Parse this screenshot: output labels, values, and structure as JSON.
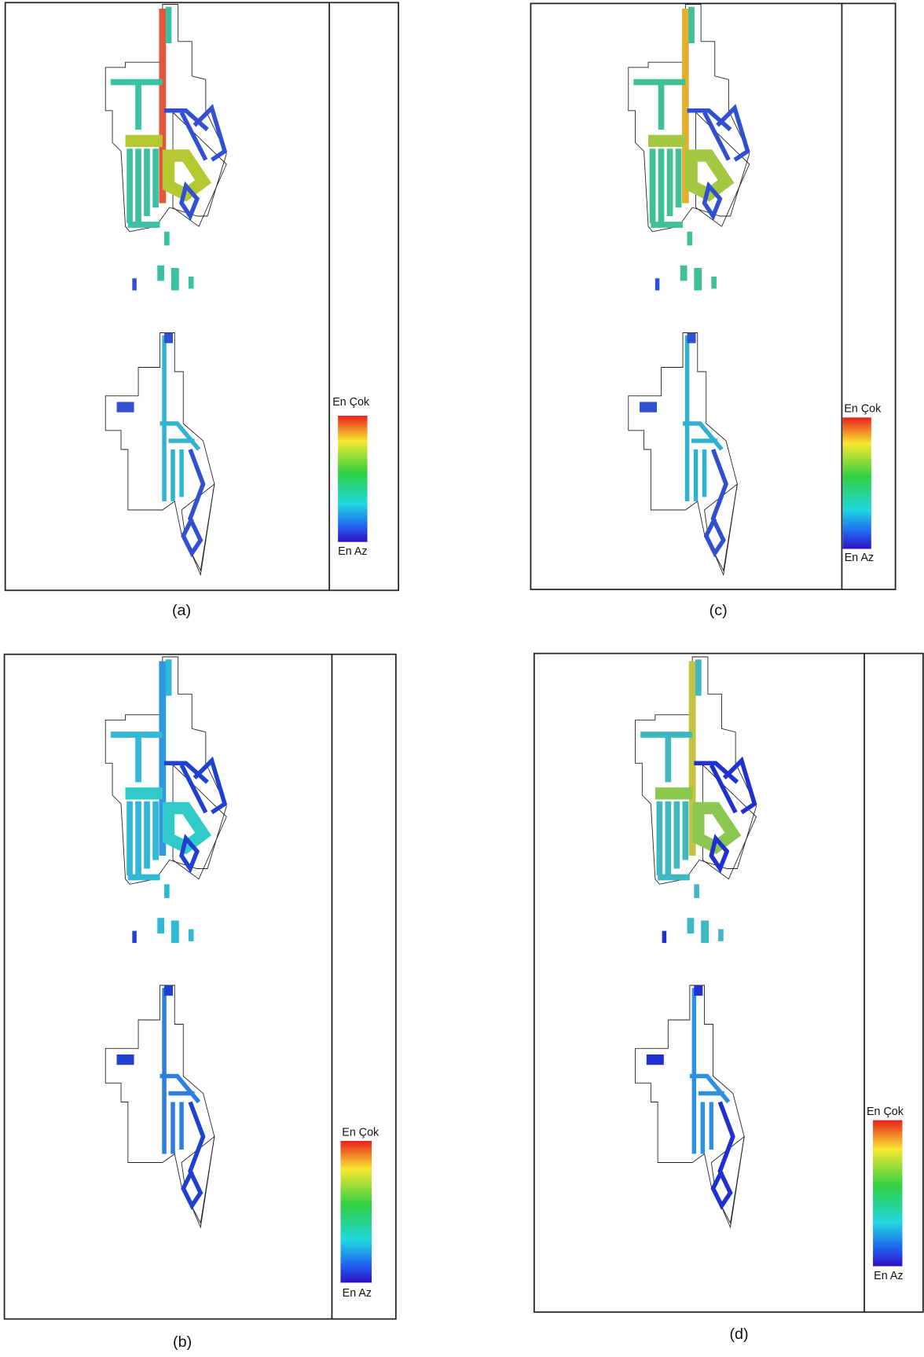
{
  "panels": [
    {
      "caption": "(a)",
      "legend": {
        "max": "En Çok",
        "min": "En Az"
      }
    },
    {
      "caption": "(b)",
      "legend": {
        "max": "En Çok",
        "min": "En Az"
      }
    },
    {
      "caption": "(c)",
      "legend": {
        "max": "En Çok",
        "min": "En Az"
      }
    },
    {
      "caption": "(d)",
      "legend": {
        "max": "En Çok",
        "min": "En Az"
      }
    }
  ]
}
